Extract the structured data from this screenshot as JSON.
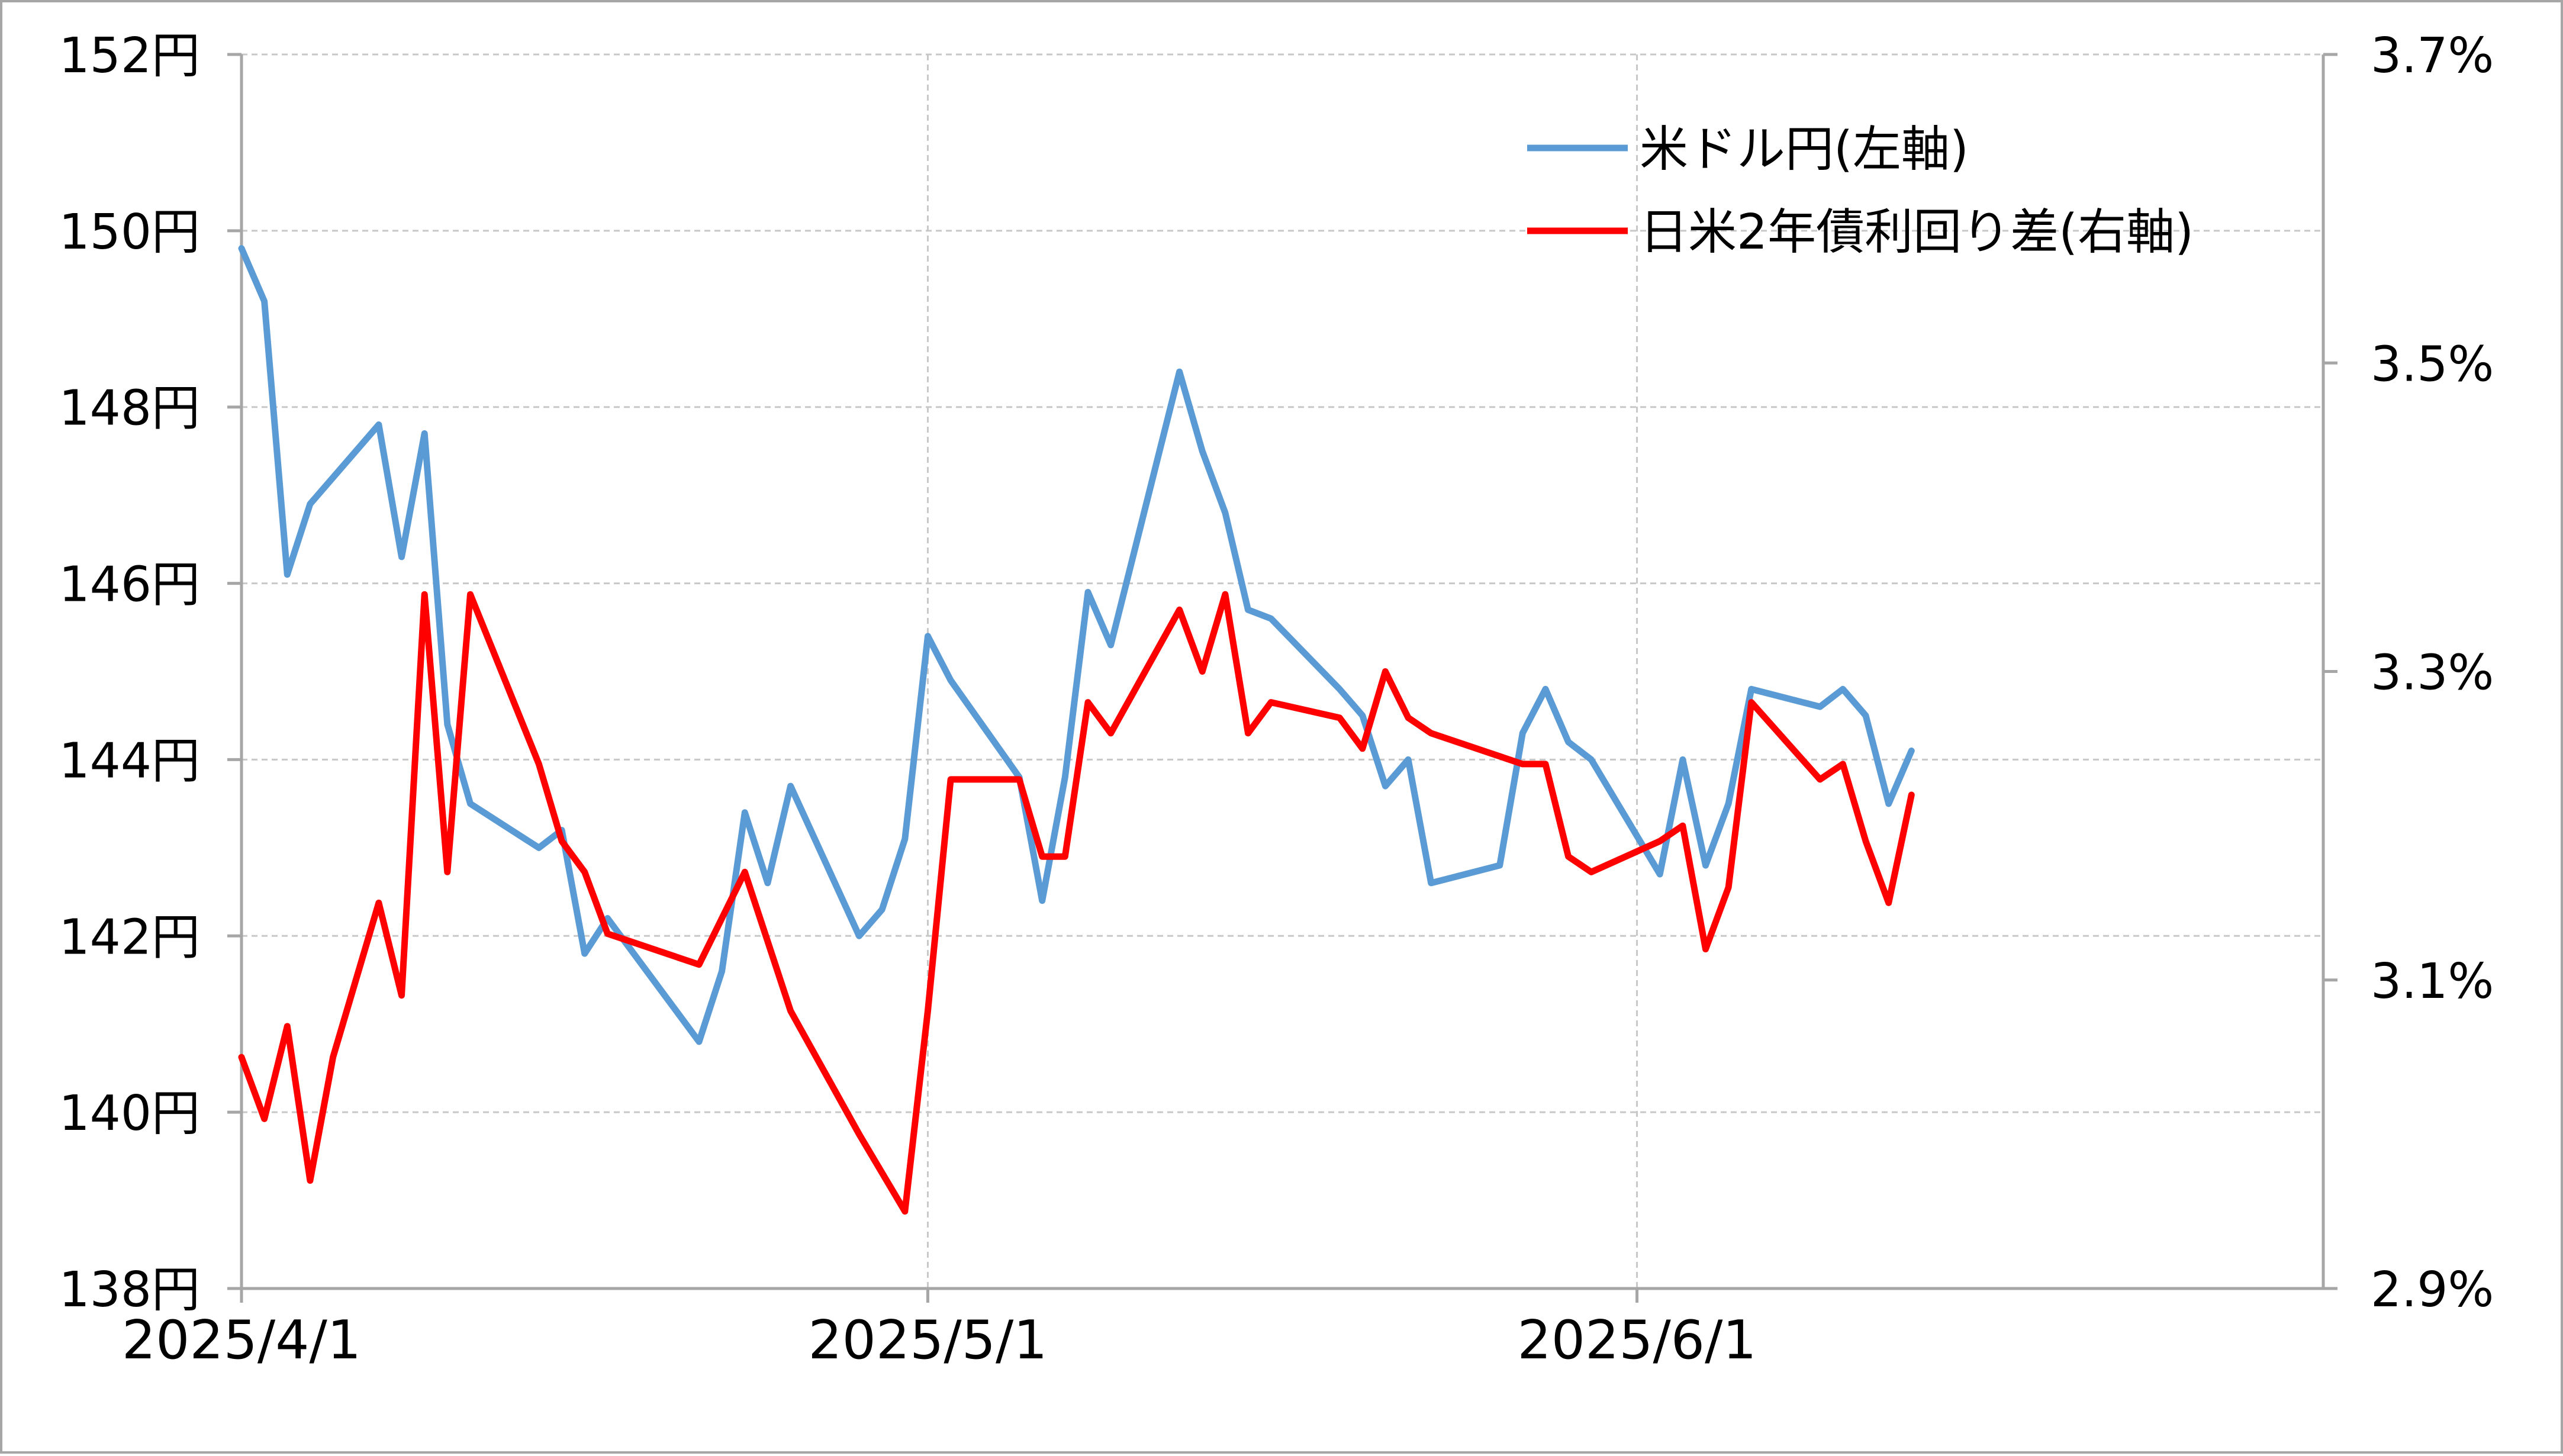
{
  "chart_data": {
    "type": "line",
    "title": "",
    "xlabel": "",
    "ylabel": "",
    "x_ticks": [
      {
        "date": "2025-04-01",
        "label": "2025/4/1"
      },
      {
        "date": "2025-05-01",
        "label": "2025/5/1"
      },
      {
        "date": "2025-06-01",
        "label": "2025/6/1"
      }
    ],
    "xlim": [
      "2025-04-01",
      "2025-07-01"
    ],
    "y_left": {
      "ylim": [
        138,
        152
      ],
      "ticks": [
        {
          "value": 138,
          "label": "138円"
        },
        {
          "value": 140,
          "label": "140円"
        },
        {
          "value": 142,
          "label": "142円"
        },
        {
          "value": 144,
          "label": "144円"
        },
        {
          "value": 146,
          "label": "146円"
        },
        {
          "value": 148,
          "label": "148円"
        },
        {
          "value": 150,
          "label": "150円"
        },
        {
          "value": 152,
          "label": "152円"
        }
      ]
    },
    "y_right": {
      "ylim": [
        2.9,
        3.7
      ],
      "ticks": [
        {
          "value": 2.9,
          "label": "2.9%"
        },
        {
          "value": 3.1,
          "label": "3.1%"
        },
        {
          "value": 3.3,
          "label": "3.3%"
        },
        {
          "value": 3.5,
          "label": "3.5%"
        },
        {
          "value": 3.7,
          "label": "3.7%"
        }
      ]
    },
    "grid": true,
    "legend_position": "top-right",
    "series": [
      {
        "name": "米ドル円(左軸)",
        "axis": "left",
        "color": "#5b9bd5",
        "points": [
          [
            "2025-04-01",
            149.8
          ],
          [
            "2025-04-02",
            149.2
          ],
          [
            "2025-04-03",
            146.1
          ],
          [
            "2025-04-04",
            146.9
          ],
          [
            "2025-04-07",
            147.8
          ],
          [
            "2025-04-08",
            146.3
          ],
          [
            "2025-04-09",
            147.7
          ],
          [
            "2025-04-10",
            144.4
          ],
          [
            "2025-04-11",
            143.5
          ],
          [
            "2025-04-14",
            143.0
          ],
          [
            "2025-04-15",
            143.2
          ],
          [
            "2025-04-16",
            141.8
          ],
          [
            "2025-04-17",
            142.2
          ],
          [
            "2025-04-21",
            140.8
          ],
          [
            "2025-04-22",
            141.6
          ],
          [
            "2025-04-23",
            143.4
          ],
          [
            "2025-04-24",
            142.6
          ],
          [
            "2025-04-25",
            143.7
          ],
          [
            "2025-04-28",
            142.0
          ],
          [
            "2025-04-29",
            142.3
          ],
          [
            "2025-04-30",
            143.1
          ],
          [
            "2025-05-01",
            145.4
          ],
          [
            "2025-05-02",
            144.9
          ],
          [
            "2025-05-05",
            143.8
          ],
          [
            "2025-05-06",
            142.4
          ],
          [
            "2025-05-07",
            143.8
          ],
          [
            "2025-05-08",
            145.9
          ],
          [
            "2025-05-09",
            145.3
          ],
          [
            "2025-05-12",
            148.4
          ],
          [
            "2025-05-13",
            147.5
          ],
          [
            "2025-05-14",
            146.8
          ],
          [
            "2025-05-15",
            145.7
          ],
          [
            "2025-05-16",
            145.6
          ],
          [
            "2025-05-19",
            144.8
          ],
          [
            "2025-05-20",
            144.5
          ],
          [
            "2025-05-21",
            143.7
          ],
          [
            "2025-05-22",
            144.0
          ],
          [
            "2025-05-23",
            142.6
          ],
          [
            "2025-05-26",
            142.8
          ],
          [
            "2025-05-27",
            144.3
          ],
          [
            "2025-05-28",
            144.8
          ],
          [
            "2025-05-29",
            144.2
          ],
          [
            "2025-05-30",
            144.0
          ],
          [
            "2025-06-02",
            142.7
          ],
          [
            "2025-06-03",
            144.0
          ],
          [
            "2025-06-04",
            142.8
          ],
          [
            "2025-06-05",
            143.5
          ],
          [
            "2025-06-06",
            144.8
          ],
          [
            "2025-06-09",
            144.6
          ],
          [
            "2025-06-10",
            144.8
          ],
          [
            "2025-06-11",
            144.5
          ],
          [
            "2025-06-12",
            143.5
          ],
          [
            "2025-06-13",
            144.1
          ]
        ]
      },
      {
        "name": "日米2年債利回り差(右軸)",
        "axis": "right",
        "color": "#ff0000",
        "points": [
          [
            "2025-04-01",
            3.05
          ],
          [
            "2025-04-02",
            3.01
          ],
          [
            "2025-04-03",
            3.07
          ],
          [
            "2025-04-04",
            2.97
          ],
          [
            "2025-04-05",
            3.05
          ],
          [
            "2025-04-07",
            3.15
          ],
          [
            "2025-04-08",
            3.09
          ],
          [
            "2025-04-09",
            3.35
          ],
          [
            "2025-04-10",
            3.17
          ],
          [
            "2025-04-11",
            3.35
          ],
          [
            "2025-04-14",
            3.24
          ],
          [
            "2025-04-15",
            3.19
          ],
          [
            "2025-04-16",
            3.17
          ],
          [
            "2025-04-17",
            3.13
          ],
          [
            "2025-04-21",
            3.11
          ],
          [
            "2025-04-22",
            3.14
          ],
          [
            "2025-04-23",
            3.17
          ],
          [
            "2025-04-25",
            3.08
          ],
          [
            "2025-04-28",
            3.0
          ],
          [
            "2025-04-30",
            2.95
          ],
          [
            "2025-05-01",
            3.08
          ],
          [
            "2025-05-02",
            3.23
          ],
          [
            "2025-05-05",
            3.23
          ],
          [
            "2025-05-06",
            3.18
          ],
          [
            "2025-05-07",
            3.18
          ],
          [
            "2025-05-08",
            3.28
          ],
          [
            "2025-05-09",
            3.26
          ],
          [
            "2025-05-12",
            3.34
          ],
          [
            "2025-05-13",
            3.3
          ],
          [
            "2025-05-14",
            3.35
          ],
          [
            "2025-05-15",
            3.26
          ],
          [
            "2025-05-16",
            3.28
          ],
          [
            "2025-05-19",
            3.27
          ],
          [
            "2025-05-20",
            3.25
          ],
          [
            "2025-05-21",
            3.3
          ],
          [
            "2025-05-22",
            3.27
          ],
          [
            "2025-05-23",
            3.26
          ],
          [
            "2025-05-27",
            3.24
          ],
          [
            "2025-05-28",
            3.24
          ],
          [
            "2025-05-29",
            3.18
          ],
          [
            "2025-05-30",
            3.17
          ],
          [
            "2025-06-02",
            3.19
          ],
          [
            "2025-06-03",
            3.2
          ],
          [
            "2025-06-04",
            3.12
          ],
          [
            "2025-06-05",
            3.16
          ],
          [
            "2025-06-06",
            3.28
          ],
          [
            "2025-06-09",
            3.23
          ],
          [
            "2025-06-10",
            3.24
          ],
          [
            "2025-06-11",
            3.19
          ],
          [
            "2025-06-12",
            3.15
          ],
          [
            "2025-06-13",
            3.22
          ]
        ]
      }
    ]
  }
}
